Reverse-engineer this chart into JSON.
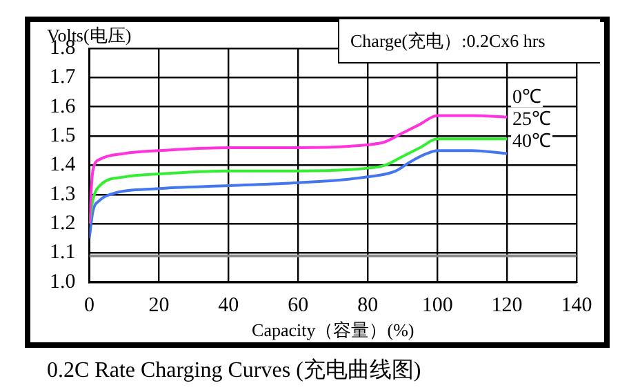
{
  "chart_data": {
    "type": "line",
    "title": "0.2C Rate Charging Curves (充电曲线图)",
    "xlabel": "Capacity（容量）(%)",
    "ylabel": "Volts(电压)",
    "annotations": [
      "Charge(充电）:0.2Cx6 hrs"
    ],
    "xlim": [
      0,
      140
    ],
    "xticks": [
      0,
      20,
      40,
      60,
      80,
      100,
      120,
      140
    ],
    "ylim": [
      1.0,
      1.8
    ],
    "yticks": [
      {
        "value": 1.0,
        "label": "1.0"
      },
      1.1,
      1.2,
      1.3,
      1.4,
      1.5,
      1.6,
      1.7,
      1.8
    ],
    "grid": true,
    "legend": false,
    "marker": "none",
    "line_style": "solid",
    "series": [
      {
        "name": "0℃",
        "color": "#ff33dd",
        "x": [
          0,
          1,
          3,
          10,
          20,
          40,
          60,
          80,
          85,
          90,
          95,
          100,
          110,
          120
        ],
        "values": [
          1.2,
          1.38,
          1.42,
          1.44,
          1.45,
          1.46,
          1.46,
          1.47,
          1.48,
          1.51,
          1.54,
          1.57,
          1.57,
          1.565
        ]
      },
      {
        "name": "25℃",
        "color": "#33ee33",
        "x": [
          0,
          1,
          3,
          10,
          20,
          40,
          60,
          80,
          85,
          90,
          95,
          100,
          110,
          120
        ],
        "values": [
          1.2,
          1.28,
          1.33,
          1.36,
          1.37,
          1.38,
          1.38,
          1.39,
          1.4,
          1.43,
          1.46,
          1.49,
          1.49,
          1.49
        ]
      },
      {
        "name": "40℃",
        "color": "#4477ee",
        "x": [
          0,
          1,
          3,
          6,
          20,
          40,
          60,
          80,
          88,
          92,
          97,
          100,
          110,
          120
        ],
        "values": [
          1.15,
          1.24,
          1.28,
          1.3,
          1.32,
          1.33,
          1.34,
          1.36,
          1.38,
          1.41,
          1.44,
          1.45,
          1.45,
          1.44
        ]
      },
      {
        "color": "#888888",
        "x": [
          0,
          140
        ],
        "values": [
          1.09,
          1.09
        ]
      }
    ]
  }
}
